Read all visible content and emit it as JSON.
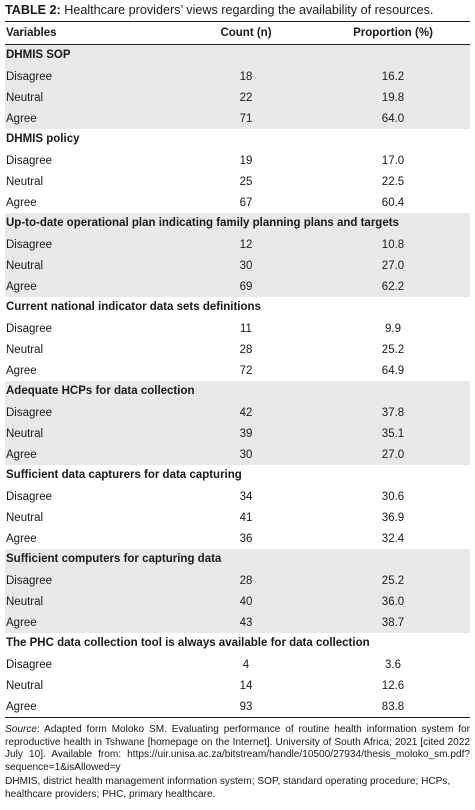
{
  "caption": {
    "label": "TABLE 2:",
    "text": " Healthcare providers’ views regarding the availability of resources."
  },
  "headers": {
    "variables": "Variables",
    "count": "Count (n)",
    "proportion": "Proportion (%)"
  },
  "sections": [
    {
      "title": "DHMIS SOP",
      "rows": [
        {
          "label": "Disagree",
          "count": "18",
          "proportion": "16.2"
        },
        {
          "label": "Neutral",
          "count": "22",
          "proportion": "19.8"
        },
        {
          "label": "Agree",
          "count": "71",
          "proportion": "64.0"
        }
      ]
    },
    {
      "title": "DHMIS policy",
      "rows": [
        {
          "label": "Disagree",
          "count": "19",
          "proportion": "17.0"
        },
        {
          "label": "Neutral",
          "count": "25",
          "proportion": "22.5"
        },
        {
          "label": "Agree",
          "count": "67",
          "proportion": "60.4"
        }
      ]
    },
    {
      "title": "Up-to-date operational plan indicating family planning plans and targets",
      "rows": [
        {
          "label": "Disagree",
          "count": "12",
          "proportion": "10.8"
        },
        {
          "label": "Neutral",
          "count": "30",
          "proportion": "27.0"
        },
        {
          "label": "Agree",
          "count": "69",
          "proportion": "62.2"
        }
      ]
    },
    {
      "title": "Current national indicator data sets definitions",
      "rows": [
        {
          "label": "Disagree",
          "count": "11",
          "proportion": "9.9"
        },
        {
          "label": "Neutral",
          "count": "28",
          "proportion": "25.2"
        },
        {
          "label": "Agree",
          "count": "72",
          "proportion": "64.9"
        }
      ]
    },
    {
      "title": "Adequate HCPs for data collection",
      "rows": [
        {
          "label": "Disagree",
          "count": "42",
          "proportion": "37.8"
        },
        {
          "label": "Neutral",
          "count": "39",
          "proportion": "35.1"
        },
        {
          "label": "Agree",
          "count": "30",
          "proportion": "27.0"
        }
      ]
    },
    {
      "title": "Sufficient data capturers for data capturing",
      "rows": [
        {
          "label": "Disagree",
          "count": "34",
          "proportion": "30.6"
        },
        {
          "label": "Neutral",
          "count": "41",
          "proportion": "36.9"
        },
        {
          "label": "Agree",
          "count": "36",
          "proportion": "32.4"
        }
      ]
    },
    {
      "title": "Sufficient computers for capturing data",
      "rows": [
        {
          "label": "Disagree",
          "count": "28",
          "proportion": "25.2"
        },
        {
          "label": "Neutral",
          "count": "40",
          "proportion": "36.0"
        },
        {
          "label": "Agree",
          "count": "43",
          "proportion": "38.7"
        }
      ]
    },
    {
      "title": "The PHC data collection tool is always available for data collection",
      "rows": [
        {
          "label": "Disagree",
          "count": "4",
          "proportion": "3.6"
        },
        {
          "label": "Neutral",
          "count": "14",
          "proportion": "12.6"
        },
        {
          "label": "Agree",
          "count": "93",
          "proportion": "83.8"
        }
      ]
    }
  ],
  "footnotes": {
    "source_label": "Source",
    "source_text": ": Adapted form Moloko SM. Evaluating performance of routine health information system for reproductive health in Tshwane [homepage on the Internet]. University of South Africa; 2021 [cited 2022 July 10]. Available from: https://uir.unisa.ac.za/bitstream/handle/10500/27934/thesis_moloko_sm.pdf?sequence=1&isAllowed=y",
    "abbreviations": "DHMIS, district health management information system; SOP, standard operating procedure; HCPs, healthcare providers; PHC, primary healthcare."
  },
  "colors": {
    "shade": "#e8e9eb",
    "rule": "#222222",
    "text": "#1a1a1a"
  }
}
